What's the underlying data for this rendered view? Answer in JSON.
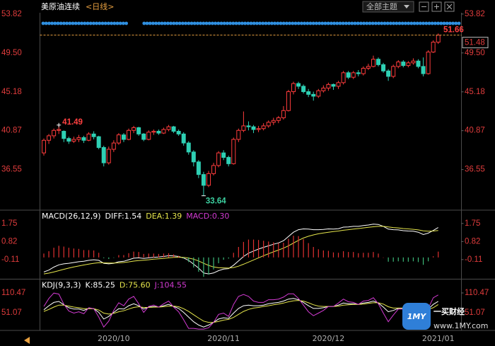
{
  "header": {
    "title": "美原油连续",
    "period": "<日线>",
    "theme_button": "全部主题"
  },
  "watermark": {
    "logo": "1MY",
    "name": "一买财经",
    "url": "www.1MY.com"
  },
  "chart_data": [
    {
      "type": "candlestick",
      "categories": [
        null,
        null,
        null,
        null,
        null,
        null,
        null,
        null,
        null,
        null,
        null,
        null,
        null,
        null,
        "2020/10",
        null,
        null,
        null,
        null,
        null,
        null,
        null,
        null,
        null,
        null,
        null,
        null,
        null,
        null,
        null,
        null,
        null,
        null,
        null,
        null,
        null,
        "2020/11",
        null,
        null,
        null,
        null,
        null,
        null,
        null,
        null,
        null,
        null,
        null,
        null,
        null,
        null,
        null,
        null,
        null,
        null,
        null,
        null,
        "2020/12",
        null,
        null,
        null,
        null,
        null,
        null,
        null,
        null,
        null,
        null,
        null,
        null,
        null,
        null,
        null,
        null,
        null,
        null,
        null,
        null,
        null,
        "2021/01"
      ],
      "values": [
        [
          38.4,
          40.0,
          38.1,
          39.8
        ],
        [
          39.8,
          40.5,
          39.4,
          40.3
        ],
        [
          40.3,
          41.1,
          40.0,
          40.9
        ],
        [
          40.9,
          41.49,
          40.5,
          41.0
        ],
        [
          40.8,
          40.9,
          39.6,
          40.0
        ],
        [
          40.0,
          40.2,
          39.4,
          39.7
        ],
        [
          39.7,
          40.2,
          39.5,
          39.9
        ],
        [
          39.9,
          40.4,
          39.6,
          40.1
        ],
        [
          40.1,
          40.3,
          39.5,
          39.8
        ],
        [
          39.8,
          40.7,
          39.7,
          40.5
        ],
        [
          40.5,
          40.8,
          39.9,
          40.2
        ],
        [
          40.2,
          40.3,
          38.8,
          39.0
        ],
        [
          39.0,
          39.2,
          36.9,
          37.3
        ],
        [
          37.3,
          39.1,
          37.1,
          38.8
        ],
        [
          38.8,
          39.8,
          38.5,
          39.5
        ],
        [
          39.5,
          40.6,
          39.3,
          40.4
        ],
        [
          40.4,
          40.6,
          39.6,
          39.9
        ],
        [
          39.9,
          41.1,
          39.8,
          40.9
        ],
        [
          40.9,
          41.4,
          40.6,
          41.2
        ],
        [
          41.2,
          41.3,
          40.3,
          40.5
        ],
        [
          40.5,
          40.6,
          39.7,
          39.9
        ],
        [
          39.9,
          40.9,
          39.8,
          40.7
        ],
        [
          40.7,
          41.0,
          40.4,
          40.8
        ],
        [
          40.8,
          41.0,
          40.4,
          40.6
        ],
        [
          40.6,
          41.2,
          40.5,
          41.0
        ],
        [
          41.0,
          41.5,
          40.8,
          41.3
        ],
        [
          41.3,
          41.4,
          40.6,
          40.8
        ],
        [
          40.8,
          41.0,
          40.3,
          40.5
        ],
        [
          40.5,
          40.7,
          39.2,
          39.5
        ],
        [
          39.5,
          39.7,
          38.2,
          38.5
        ],
        [
          38.5,
          38.7,
          36.9,
          37.4
        ],
        [
          37.4,
          37.6,
          35.6,
          36.0
        ],
        [
          36.0,
          36.3,
          33.64,
          34.8
        ],
        [
          34.8,
          36.4,
          34.6,
          36.1
        ],
        [
          36.1,
          37.3,
          35.9,
          37.0
        ],
        [
          37.0,
          38.6,
          36.8,
          38.4
        ],
        [
          38.4,
          38.7,
          37.6,
          37.9
        ],
        [
          37.9,
          38.1,
          36.9,
          37.2
        ],
        [
          37.2,
          40.1,
          37.1,
          39.9
        ],
        [
          39.9,
          41.1,
          39.6,
          40.9
        ],
        [
          40.9,
          43.0,
          40.7,
          41.4
        ],
        [
          41.4,
          41.9,
          40.9,
          41.3
        ],
        [
          41.3,
          41.5,
          40.6,
          41.0
        ],
        [
          41.0,
          41.4,
          40.7,
          41.1
        ],
        [
          41.1,
          41.7,
          40.9,
          41.4
        ],
        [
          41.4,
          42.0,
          41.2,
          41.8
        ],
        [
          41.8,
          42.3,
          41.5,
          42.0
        ],
        [
          42.0,
          42.5,
          41.7,
          42.3
        ],
        [
          42.3,
          43.6,
          42.1,
          43.1
        ],
        [
          43.1,
          45.4,
          43.0,
          45.2
        ],
        [
          45.2,
          46.3,
          44.9,
          46.1
        ],
        [
          46.1,
          46.3,
          45.5,
          45.8
        ],
        [
          45.8,
          46.0,
          45.0,
          45.2
        ],
        [
          45.2,
          45.5,
          44.6,
          44.9
        ],
        [
          44.9,
          45.2,
          44.2,
          44.7
        ],
        [
          44.7,
          45.5,
          44.5,
          45.3
        ],
        [
          45.3,
          45.9,
          45.1,
          45.6
        ],
        [
          45.6,
          46.2,
          45.3,
          46.0
        ],
        [
          46.0,
          46.1,
          45.4,
          45.8
        ],
        [
          45.8,
          46.4,
          45.5,
          46.2
        ],
        [
          46.2,
          47.5,
          46.0,
          47.3
        ],
        [
          47.3,
          47.5,
          46.6,
          46.8
        ],
        [
          46.8,
          47.5,
          46.6,
          47.3
        ],
        [
          47.3,
          47.6,
          46.9,
          47.2
        ],
        [
          47.2,
          48.0,
          47.0,
          47.8
        ],
        [
          47.8,
          48.3,
          47.6,
          48.0
        ],
        [
          48.0,
          49.2,
          47.9,
          48.8
        ],
        [
          48.8,
          49.0,
          48.0,
          48.2
        ],
        [
          48.2,
          48.4,
          47.3,
          47.5
        ],
        [
          47.5,
          47.7,
          46.4,
          46.9
        ],
        [
          46.9,
          48.2,
          46.7,
          48.0
        ],
        [
          48.0,
          48.7,
          47.8,
          48.5
        ],
        [
          48.5,
          48.7,
          47.9,
          48.1
        ],
        [
          48.1,
          48.6,
          47.9,
          48.4
        ],
        [
          48.4,
          48.9,
          48.2,
          48.6
        ],
        [
          48.6,
          48.8,
          47.8,
          48.0
        ],
        [
          48.0,
          49.0,
          46.9,
          47.2
        ],
        [
          47.2,
          49.8,
          47.1,
          49.6
        ],
        [
          49.6,
          50.9,
          49.5,
          50.7
        ],
        [
          50.7,
          51.66,
          50.5,
          51.48
        ]
      ],
      "up_color": "#ff3c3c",
      "down_color": "#2ed0b4",
      "ylim": [
        32.2,
        54.2
      ],
      "yticks": [
        36.55,
        40.87,
        45.18,
        {
          "value": 49.5,
          "label": "49.50"
        },
        53.82
      ]
    },
    {
      "type": "line",
      "title": "MACD(26,12,9)",
      "series": [
        {
          "name": "DIFF:1.54",
          "color": "#ffffff",
          "values": [
            -0.75,
            -0.65,
            -0.5,
            -0.38,
            -0.33,
            -0.3,
            -0.26,
            -0.22,
            -0.2,
            -0.15,
            -0.12,
            -0.15,
            -0.3,
            -0.33,
            -0.3,
            -0.22,
            -0.2,
            -0.12,
            -0.04,
            -0.02,
            -0.05,
            -0.02,
            0.01,
            0.02,
            0.05,
            0.09,
            0.08,
            0.05,
            -0.03,
            -0.15,
            -0.35,
            -0.55,
            -0.8,
            -0.85,
            -0.8,
            -0.68,
            -0.6,
            -0.58,
            -0.4,
            -0.18,
            0.05,
            0.22,
            0.33,
            0.43,
            0.52,
            0.6,
            0.68,
            0.75,
            0.86,
            1.08,
            1.3,
            1.43,
            1.47,
            1.46,
            1.43,
            1.43,
            1.44,
            1.47,
            1.46,
            1.48,
            1.56,
            1.57,
            1.6,
            1.6,
            1.64,
            1.67,
            1.72,
            1.7,
            1.6,
            1.46,
            1.43,
            1.42,
            1.38,
            1.36,
            1.35,
            1.3,
            1.18,
            1.25,
            1.39,
            1.54
          ]
        },
        {
          "name": "DEA:1.39",
          "color": "#e6e64c",
          "values": [
            -0.85,
            -0.81,
            -0.75,
            -0.68,
            -0.61,
            -0.55,
            -0.49,
            -0.44,
            -0.39,
            -0.34,
            -0.3,
            -0.27,
            -0.28,
            -0.29,
            -0.29,
            -0.28,
            -0.26,
            -0.23,
            -0.19,
            -0.16,
            -0.14,
            -0.12,
            -0.09,
            -0.07,
            -0.05,
            -0.02,
            0.0,
            0.01,
            0.0,
            -0.03,
            -0.09,
            -0.18,
            -0.3,
            -0.41,
            -0.49,
            -0.53,
            -0.54,
            -0.55,
            -0.52,
            -0.45,
            -0.35,
            -0.24,
            -0.13,
            -0.02,
            0.09,
            0.19,
            0.29,
            0.38,
            0.48,
            0.6,
            0.74,
            0.88,
            1.0,
            1.09,
            1.16,
            1.22,
            1.26,
            1.3,
            1.33,
            1.36,
            1.4,
            1.43,
            1.46,
            1.49,
            1.52,
            1.55,
            1.58,
            1.6,
            1.6,
            1.57,
            1.54,
            1.52,
            1.49,
            1.47,
            1.45,
            1.42,
            1.37,
            1.35,
            1.36,
            1.39
          ]
        },
        {
          "name": "MACD:0.30",
          "color": "#d23ad2",
          "type": "bar",
          "up_color": "#e03030",
          "down_color": "#3cb878",
          "values": [
            0.2,
            0.32,
            0.5,
            0.6,
            0.56,
            0.5,
            0.46,
            0.44,
            0.38,
            0.38,
            0.36,
            0.24,
            -0.04,
            -0.08,
            -0.02,
            0.12,
            0.12,
            0.22,
            0.3,
            0.28,
            0.18,
            0.2,
            0.2,
            0.18,
            0.2,
            0.22,
            0.16,
            0.08,
            -0.06,
            -0.24,
            -0.52,
            -0.74,
            -1.0,
            -0.88,
            -0.62,
            -0.3,
            -0.12,
            -0.06,
            0.24,
            0.54,
            0.8,
            0.92,
            0.92,
            0.9,
            0.86,
            0.82,
            0.78,
            0.74,
            0.76,
            0.96,
            1.12,
            1.1,
            0.94,
            0.74,
            0.54,
            0.42,
            0.36,
            0.34,
            0.26,
            0.24,
            0.32,
            0.28,
            0.28,
            0.22,
            0.24,
            0.24,
            0.28,
            0.2,
            0.0,
            -0.22,
            -0.22,
            -0.2,
            -0.22,
            -0.22,
            -0.2,
            -0.24,
            -0.38,
            -0.2,
            0.06,
            0.3
          ]
        }
      ],
      "ylim": [
        -1.1,
        2.4
      ],
      "yticks": [
        -0.11,
        0.82,
        1.75
      ]
    },
    {
      "type": "line",
      "title": "KDJ(9,3,3)",
      "series": [
        {
          "name": "K:85.25",
          "color": "#ffffff",
          "values": [
            60,
            72,
            82,
            85,
            75,
            66,
            62,
            62,
            58,
            64,
            63,
            52,
            32,
            40,
            52,
            63,
            62,
            72,
            78,
            72,
            62,
            68,
            70,
            68,
            72,
            76,
            70,
            64,
            52,
            38,
            24,
            14,
            8,
            14,
            22,
            32,
            36,
            34,
            50,
            64,
            72,
            74,
            72,
            72,
            74,
            78,
            80,
            82,
            86,
            92,
            94,
            90,
            82,
            72,
            64,
            64,
            66,
            70,
            70,
            74,
            80,
            78,
            78,
            76,
            80,
            82,
            86,
            80,
            68,
            54,
            58,
            64,
            64,
            66,
            68,
            62,
            50,
            62,
            76,
            85.25
          ]
        },
        {
          "name": "D:75.60",
          "color": "#e6e64c",
          "values": [
            55,
            61,
            68,
            74,
            74,
            71,
            68,
            66,
            63,
            63,
            63,
            59,
            50,
            47,
            49,
            54,
            57,
            62,
            67,
            69,
            67,
            67,
            68,
            68,
            69,
            71,
            71,
            69,
            63,
            55,
            45,
            35,
            26,
            22,
            22,
            25,
            29,
            31,
            37,
            46,
            55,
            61,
            65,
            67,
            70,
            72,
            75,
            77,
            80,
            84,
            87,
            88,
            86,
            81,
            75,
            71,
            70,
            70,
            70,
            71,
            74,
            75,
            76,
            76,
            77,
            79,
            81,
            81,
            77,
            69,
            65,
            65,
            65,
            65,
            66,
            65,
            60,
            61,
            66,
            75.6
          ]
        },
        {
          "name": "J:104.55",
          "color": "#d23ad2",
          "values": [
            70,
            94,
            110,
            107,
            77,
            56,
            50,
            54,
            48,
            66,
            63,
            38,
            8,
            26,
            58,
            81,
            72,
            92,
            100,
            78,
            52,
            70,
            74,
            68,
            78,
            86,
            68,
            54,
            30,
            4,
            4,
            2,
            2,
            6,
            22,
            46,
            50,
            40,
            76,
            100,
            106,
            100,
            86,
            82,
            82,
            90,
            90,
            92,
            98,
            108,
            108,
            94,
            74,
            54,
            42,
            50,
            58,
            70,
            70,
            80,
            92,
            84,
            82,
            76,
            86,
            88,
            96,
            78,
            50,
            24,
            44,
            62,
            62,
            68,
            72,
            56,
            30,
            64,
            96,
            104.55
          ]
        }
      ],
      "ylim": [
        0,
        150
      ],
      "yticks": [
        51.07,
        110.47
      ]
    }
  ]
}
